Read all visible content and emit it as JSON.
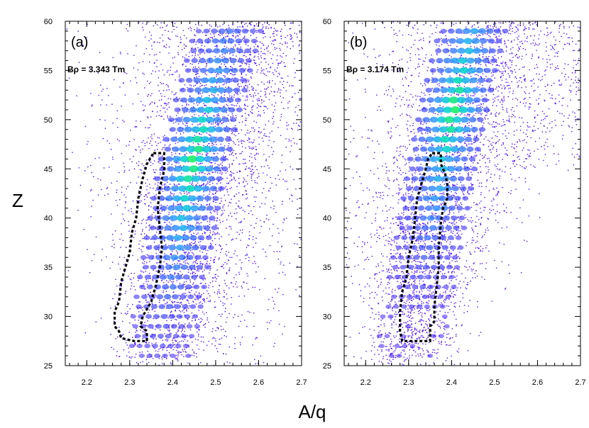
{
  "chart_data": [
    {
      "type": "scatter",
      "panel_label": "(a)",
      "annotation": "Bρ = 3.343 Tm",
      "xlabel": "A/q",
      "ylabel": "Z",
      "xlim": [
        2.15,
        2.7
      ],
      "ylim": [
        25,
        60
      ],
      "x_ticks": [
        "2.2",
        "2.3",
        "2.4",
        "2.5",
        "2.6",
        "2.7"
      ],
      "y_ticks": [
        "25",
        "30",
        "35",
        "40",
        "45",
        "50",
        "55",
        "60"
      ],
      "density": {
        "ridge": [
          [
            2.36,
            25
          ],
          [
            2.4,
            35
          ],
          [
            2.44,
            45
          ],
          [
            2.48,
            52
          ],
          [
            2.53,
            60
          ]
        ],
        "peak_z": 46,
        "peak_aq": 2.46
      },
      "gate": [
        [
          2.355,
          46.6
        ],
        [
          2.38,
          46.6
        ],
        [
          2.38,
          44.8
        ],
        [
          2.375,
          44.0
        ],
        [
          2.37,
          43.0
        ],
        [
          2.365,
          41.0
        ],
        [
          2.37,
          39.0
        ],
        [
          2.375,
          37.0
        ],
        [
          2.37,
          35.0
        ],
        [
          2.36,
          33.0
        ],
        [
          2.35,
          31.5
        ],
        [
          2.33,
          30.0
        ],
        [
          2.325,
          29.0
        ],
        [
          2.34,
          28.5
        ],
        [
          2.34,
          27.5
        ],
        [
          2.31,
          27.5
        ],
        [
          2.3,
          27.6
        ],
        [
          2.28,
          27.8
        ],
        [
          2.275,
          28.5
        ],
        [
          2.265,
          29.0
        ],
        [
          2.265,
          30.5
        ],
        [
          2.275,
          31.5
        ],
        [
          2.28,
          33.5
        ],
        [
          2.29,
          35.0
        ],
        [
          2.3,
          36.5
        ],
        [
          2.305,
          38.5
        ],
        [
          2.315,
          40.0
        ],
        [
          2.32,
          42.0
        ],
        [
          2.33,
          44.0
        ],
        [
          2.34,
          45.5
        ],
        [
          2.355,
          46.6
        ]
      ]
    },
    {
      "type": "scatter",
      "panel_label": "(b)",
      "annotation": "Bρ = 3.174 Tm",
      "xlabel": "A/q",
      "ylabel": "Z",
      "xlim": [
        2.15,
        2.7
      ],
      "ylim": [
        25,
        60
      ],
      "x_ticks": [
        "2.2",
        "2.3",
        "2.4",
        "2.5",
        "2.6",
        "2.7"
      ],
      "y_ticks": [
        "25",
        "30",
        "35",
        "40",
        "45",
        "50",
        "55",
        "60"
      ],
      "density": {
        "ridge": [
          [
            2.3,
            27
          ],
          [
            2.34,
            37
          ],
          [
            2.38,
            47
          ],
          [
            2.42,
            55
          ],
          [
            2.45,
            60
          ]
        ],
        "peak_z": 51,
        "peak_aq": 2.41
      },
      "gate": [
        [
          2.355,
          46.6
        ],
        [
          2.375,
          46.6
        ],
        [
          2.375,
          45.5
        ],
        [
          2.385,
          44.5
        ],
        [
          2.39,
          43.5
        ],
        [
          2.39,
          42.0
        ],
        [
          2.38,
          41.0
        ],
        [
          2.375,
          39.5
        ],
        [
          2.37,
          37.0
        ],
        [
          2.37,
          35.0
        ],
        [
          2.365,
          33.0
        ],
        [
          2.36,
          31.0
        ],
        [
          2.36,
          29.5
        ],
        [
          2.35,
          29.0
        ],
        [
          2.35,
          27.5
        ],
        [
          2.32,
          27.5
        ],
        [
          2.3,
          27.5
        ],
        [
          2.285,
          27.5
        ],
        [
          2.28,
          28.5
        ],
        [
          2.28,
          30.5
        ],
        [
          2.285,
          32.5
        ],
        [
          2.295,
          34.0
        ],
        [
          2.3,
          36.0
        ],
        [
          2.31,
          38.0
        ],
        [
          2.315,
          40.0
        ],
        [
          2.32,
          42.0
        ],
        [
          2.33,
          43.5
        ],
        [
          2.34,
          45.0
        ],
        [
          2.345,
          46.0
        ],
        [
          2.355,
          46.6
        ]
      ]
    }
  ],
  "shared_xlabel": "A/q",
  "shared_ylabel": "Z",
  "colors": {
    "low": "#5a00ff",
    "mid": "#1e90ff",
    "high": "#00e87a",
    "gate": "#000000"
  }
}
